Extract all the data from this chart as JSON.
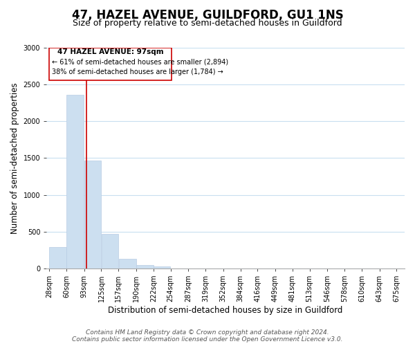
{
  "title": "47, HAZEL AVENUE, GUILDFORD, GU1 1NS",
  "subtitle": "Size of property relative to semi-detached houses in Guildford",
  "xlabel": "Distribution of semi-detached houses by size in Guildford",
  "ylabel": "Number of semi-detached properties",
  "bar_left_edges": [
    28,
    60,
    93,
    125,
    157,
    190,
    222,
    254,
    287,
    319,
    352,
    384,
    416,
    449,
    481,
    513,
    546,
    578,
    610,
    643
  ],
  "bar_widths": [
    32,
    33,
    32,
    32,
    33,
    32,
    32,
    33,
    32,
    33,
    32,
    32,
    33,
    32,
    32,
    33,
    32,
    32,
    33,
    32
  ],
  "bar_heights": [
    290,
    2360,
    1470,
    470,
    130,
    50,
    30,
    0,
    0,
    0,
    0,
    0,
    0,
    0,
    0,
    0,
    0,
    0,
    0,
    0
  ],
  "bar_color": "#ccdff0",
  "bar_edge_color": "#b8cce4",
  "grid_color": "#c8dff0",
  "property_size": 97,
  "red_line_color": "#cc0000",
  "annotation_text_line1": "47 HAZEL AVENUE: 97sqm",
  "annotation_text_line2": "← 61% of semi-detached houses are smaller (2,894)",
  "annotation_text_line3": "38% of semi-detached houses are larger (1,784) →",
  "annotation_box_color": "#cc0000",
  "annotation_fill": "#ffffff",
  "ylim": [
    0,
    3000
  ],
  "yticks": [
    0,
    500,
    1000,
    1500,
    2000,
    2500,
    3000
  ],
  "x_tick_labels": [
    "28sqm",
    "60sqm",
    "93sqm",
    "125sqm",
    "157sqm",
    "190sqm",
    "222sqm",
    "254sqm",
    "287sqm",
    "319sqm",
    "352sqm",
    "384sqm",
    "416sqm",
    "449sqm",
    "481sqm",
    "513sqm",
    "546sqm",
    "578sqm",
    "610sqm",
    "643sqm",
    "675sqm"
  ],
  "x_tick_positions": [
    28,
    60,
    93,
    125,
    157,
    190,
    222,
    254,
    287,
    319,
    352,
    384,
    416,
    449,
    481,
    513,
    546,
    578,
    610,
    643,
    675
  ],
  "footer_line1": "Contains HM Land Registry data © Crown copyright and database right 2024.",
  "footer_line2": "Contains public sector information licensed under the Open Government Licence v3.0.",
  "background_color": "#ffffff",
  "title_fontsize": 12,
  "subtitle_fontsize": 9,
  "axis_label_fontsize": 8.5,
  "tick_fontsize": 7,
  "annotation_fontsize_title": 7.5,
  "annotation_fontsize_body": 7,
  "footer_fontsize": 6.5
}
